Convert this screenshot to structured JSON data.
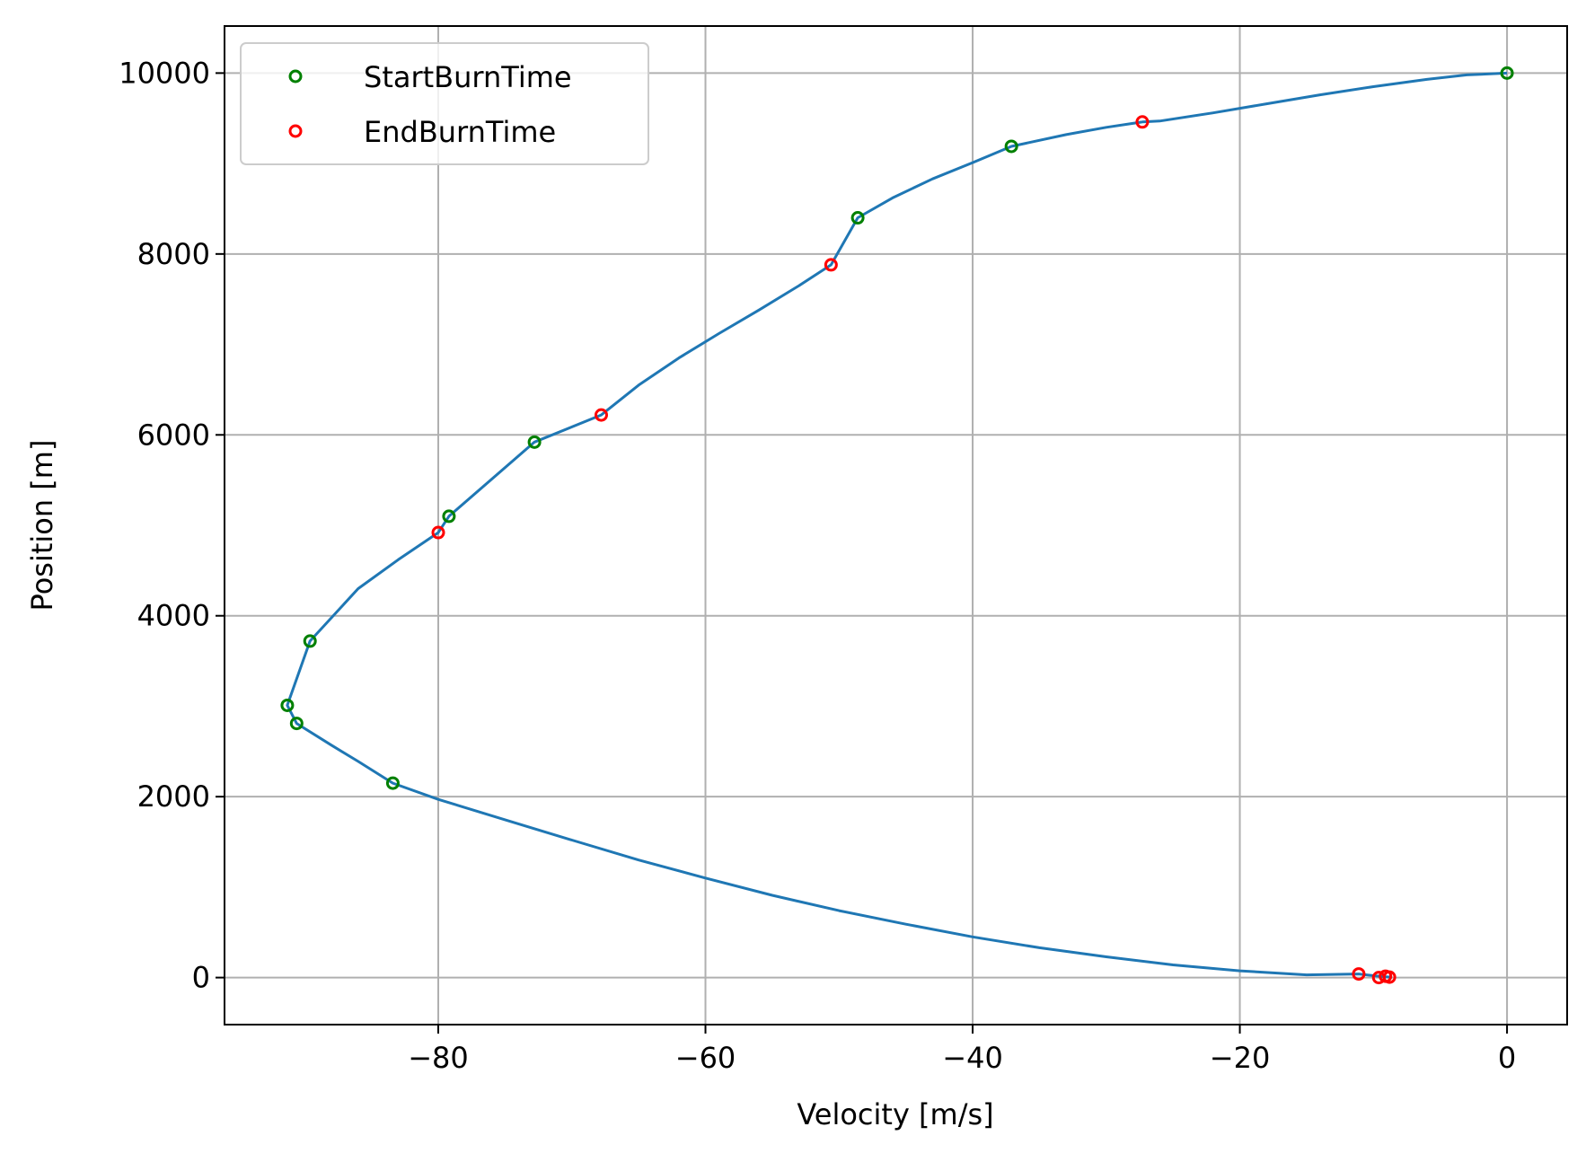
{
  "chart_data": {
    "type": "line",
    "xlabel": "Velocity [m/s]",
    "ylabel": "Position [m]",
    "xlim": [
      -96,
      4.5
    ],
    "ylim": [
      -520,
      10520
    ],
    "grid": true,
    "legend_position": "top-left",
    "xticks": [
      -80,
      -60,
      -40,
      -20,
      0
    ],
    "xtick_labels": [
      "−80",
      "−60",
      "−40",
      "−20",
      "0"
    ],
    "yticks": [
      0,
      2000,
      4000,
      6000,
      8000,
      10000
    ],
    "ytick_labels": [
      "0",
      "2000",
      "4000",
      "6000",
      "8000",
      "10000"
    ],
    "colors": {
      "line": "#1f77b4",
      "start": "#008000",
      "end": "#ff0000",
      "grid": "#b0b0b0"
    },
    "series": [
      {
        "kind": "line",
        "x": [
          0,
          -3,
          -6,
          -10,
          -14,
          -18,
          -22,
          -26,
          -27.3,
          -30,
          -33,
          -37.1,
          -40,
          -43,
          -46,
          -48.6,
          -50.6,
          -53,
          -56,
          -59,
          -62,
          -65,
          -67.8,
          -72.8,
          -79.2,
          -80,
          -83,
          -86,
          -89.6,
          -91.3,
          -90.6,
          -88,
          -86,
          -83.4,
          -80,
          -75,
          -70,
          -65,
          -60,
          -55,
          -50,
          -45,
          -40,
          -35,
          -30,
          -25,
          -20,
          -15,
          -11.1,
          -9.3,
          -8.6
        ],
        "y": [
          10000,
          9980,
          9930,
          9850,
          9760,
          9660,
          9560,
          9470,
          9460,
          9400,
          9320,
          9190,
          9010,
          8830,
          8620,
          8400,
          7880,
          7650,
          7380,
          7120,
          6850,
          6550,
          6220,
          5920,
          5100,
          4920,
          4620,
          4300,
          3720,
          3010,
          2810,
          2570,
          2390,
          2150,
          1970,
          1745,
          1520,
          1300,
          1100,
          910,
          740,
          590,
          450,
          330,
          230,
          140,
          75,
          30,
          40,
          10,
          5
        ]
      },
      {
        "kind": "scatter",
        "name": "StartBurnTime",
        "x": [
          0,
          -37.1,
          -48.6,
          -72.8,
          -79.2,
          -89.6,
          -91.3,
          -90.6,
          -83.4
        ],
        "y": [
          10000,
          9190,
          8400,
          5920,
          5100,
          3720,
          3010,
          2810,
          2150
        ]
      },
      {
        "kind": "scatter",
        "name": "EndBurnTime",
        "x": [
          -27.3,
          -50.6,
          -67.8,
          -80,
          -11.1,
          -9.6,
          -9.1,
          -8.8
        ],
        "y": [
          9460,
          7880,
          6220,
          4920,
          40,
          0,
          15,
          5
        ]
      }
    ]
  }
}
